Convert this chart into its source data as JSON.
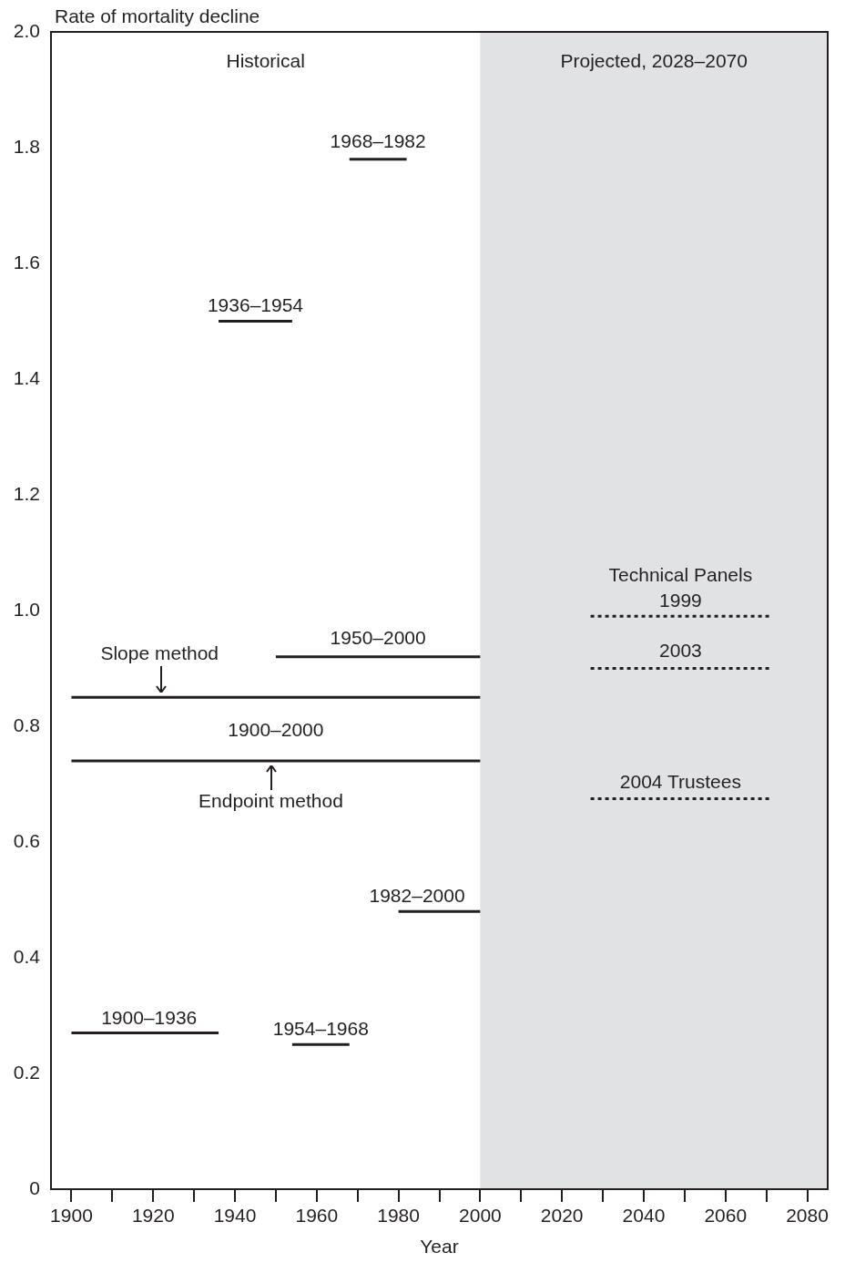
{
  "chart_data": {
    "type": "line",
    "ylabel": "Rate of mortality decline",
    "xlabel": "Year",
    "xlim": [
      1895,
      2085
    ],
    "xticks": [
      1900,
      {
        "value": 1910,
        "label": null
      },
      1920,
      {
        "value": 1930,
        "label": null
      },
      1940,
      {
        "value": 1950,
        "label": null
      },
      1960,
      {
        "value": 1970,
        "label": null
      },
      1980,
      {
        "value": 1990,
        "label": null
      },
      2000,
      {
        "value": 2010,
        "label": null
      },
      2020,
      {
        "value": 2030,
        "label": null
      },
      2040,
      {
        "value": 2050,
        "label": null
      },
      2060,
      {
        "value": 2070,
        "label": null
      },
      2080
    ],
    "ylim": [
      0,
      2.0
    ],
    "yticks": [
      0,
      0.2,
      0.4,
      0.6,
      0.8,
      {
        "value": 1.0,
        "label": "1.0"
      },
      1.2,
      1.4,
      1.6,
      1.8,
      {
        "value": 2.0,
        "label": "2.0"
      }
    ],
    "legend": false,
    "series": [
      {
        "color": "#231f20",
        "x": [
          1968,
          1982
        ],
        "values": [
          1.78,
          1.78
        ]
      },
      {
        "color": "#231f20",
        "x": [
          1936,
          1954
        ],
        "values": [
          1.5,
          1.5
        ]
      },
      {
        "color": "#231f20",
        "x": [
          1950,
          2000
        ],
        "values": [
          0.92,
          0.92
        ]
      },
      {
        "color": "#231f20",
        "x": [
          1900,
          2000
        ],
        "values": [
          0.85,
          0.85
        ]
      },
      {
        "color": "#231f20",
        "x": [
          1900,
          2000
        ],
        "values": [
          0.74,
          0.74
        ]
      },
      {
        "color": "#231f20",
        "x": [
          1980,
          2000
        ],
        "values": [
          0.48,
          0.48
        ]
      },
      {
        "color": "#231f20",
        "x": [
          1900,
          1936
        ],
        "values": [
          0.27,
          0.27
        ]
      },
      {
        "color": "#231f20",
        "x": [
          1954,
          1968
        ],
        "values": [
          0.25,
          0.25
        ]
      },
      {
        "color": "#231f20",
        "x": [
          2027,
          2071
        ],
        "values": [
          0.99,
          0.99
        ],
        "line_style": "dotted"
      },
      {
        "color": "#231f20",
        "x": [
          2027,
          2071
        ],
        "values": [
          0.9,
          0.9
        ],
        "line_style": "dotted"
      },
      {
        "color": "#231f20",
        "x": [
          2027,
          2071
        ],
        "values": [
          0.675,
          0.675
        ],
        "line_style": "dotted"
      }
    ],
    "bands": [
      {
        "axis": "x",
        "from": 2000,
        "to": 2085,
        "label": "Projected, 2028–2070",
        "color": "#e1e2e4"
      }
    ],
    "annotations": [
      "Historical",
      {
        "text": "1968–1982",
        "x": 1975,
        "y": 1.78
      },
      {
        "text": "1936–1954",
        "x": 1945,
        "y": 1.5
      },
      {
        "text": "1950–2000",
        "x": 1975,
        "y": 0.92
      },
      {
        "text": "Slope method",
        "x": 1922,
        "y": 0.85
      },
      {
        "text": "1900–2000",
        "x": 1950,
        "y": 0.74
      },
      {
        "text": "Endpoint method",
        "x": 1949,
        "y": 0.74
      },
      {
        "text": "1982–2000",
        "x": 1985,
        "y": 0.48
      },
      {
        "text": "1900–1936",
        "x": 1919,
        "y": 0.27
      },
      {
        "text": "1954–1968",
        "x": 1961,
        "y": 0.25
      },
      {
        "text": "Technical Panels",
        "x": 2049,
        "y": 0.99
      },
      {
        "text": "1999",
        "x": 2049,
        "y": 0.99
      },
      {
        "text": "2003",
        "x": 2049,
        "y": 0.9
      },
      {
        "text": "2004 Trustees",
        "x": 2049,
        "y": 0.675
      }
    ]
  }
}
